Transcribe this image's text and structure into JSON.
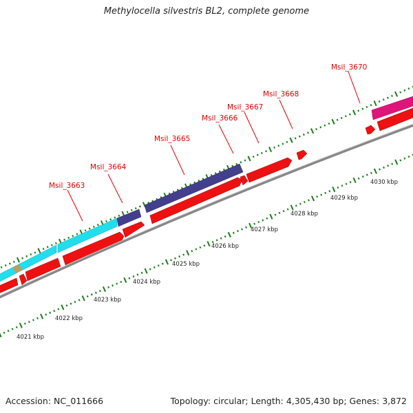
{
  "title": "Methylocella silvestris BL2, complete genome",
  "footer": {
    "accession": "Accession: NC_011666",
    "summary": "Topology: circular; Length: 4,305,430 bp; Genes: 3,872"
  },
  "colors": {
    "cds_forward_red": "#ee1111",
    "cyan_gene": "#22ddee",
    "indigo_gene": "#443f8c",
    "magenta_gene": "#e0157a",
    "tan_gene": "#b8a060",
    "backbone": "#888888",
    "tick_green": "#1a7a1a",
    "label_red": "#dd0000"
  },
  "scale": {
    "unit": "kbp",
    "ticks": [
      "4021 kbp",
      "4022 kbp",
      "4023 kbp",
      "4024 kbp",
      "4025 kbp",
      "4026 kbp",
      "4027 kbp",
      "4028 kbp",
      "4029 kbp",
      "4030 kbp"
    ]
  },
  "loci": [
    {
      "label": "Msil_3663"
    },
    {
      "label": "Msil_3664"
    },
    {
      "label": "Msil_3665"
    },
    {
      "label": "Msil_3666"
    },
    {
      "label": "Msil_3667"
    },
    {
      "label": "Msil_3668"
    },
    {
      "label": "Msil_3670"
    }
  ]
}
